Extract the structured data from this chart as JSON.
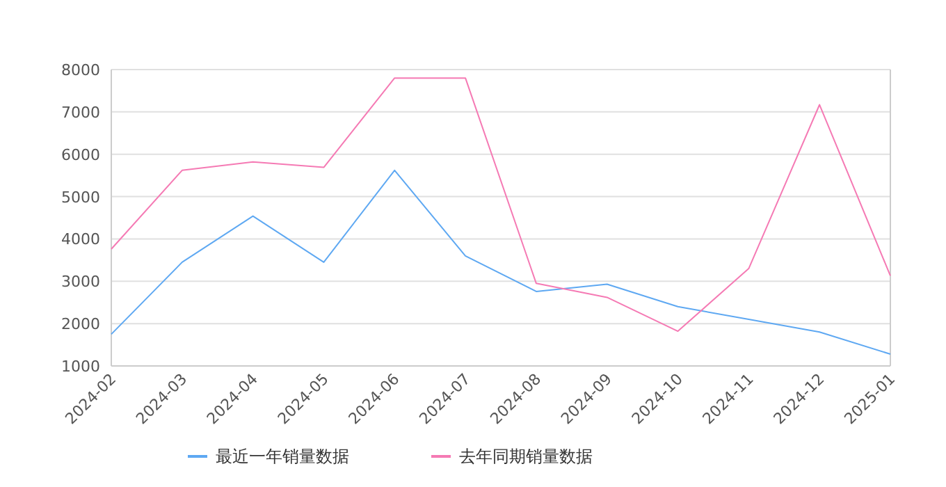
{
  "chart_data": {
    "type": "line",
    "categories": [
      "2024-02",
      "2024-03",
      "2024-04",
      "2024-05",
      "2024-06",
      "2024-07",
      "2024-08",
      "2024-09",
      "2024-10",
      "2024-11",
      "2024-12",
      "2025-01"
    ],
    "series": [
      {
        "name": "最近一年销量数据",
        "color": "#5ea8f2",
        "values": [
          1750,
          3450,
          4540,
          3450,
          5620,
          3600,
          2760,
          2930,
          2400,
          2100,
          1800,
          1280
        ]
      },
      {
        "name": "去年同期销量数据",
        "color": "#f57ab4",
        "values": [
          3760,
          5620,
          5820,
          5690,
          7800,
          7800,
          2950,
          2620,
          1820,
          3300,
          7170,
          3130
        ]
      }
    ],
    "ylim": [
      1000,
      8000
    ],
    "yticks": [
      1000,
      2000,
      3000,
      4000,
      5000,
      6000,
      7000,
      8000
    ],
    "grid": "y",
    "legend": "bottom",
    "marker": "none",
    "line_style": "solid"
  }
}
